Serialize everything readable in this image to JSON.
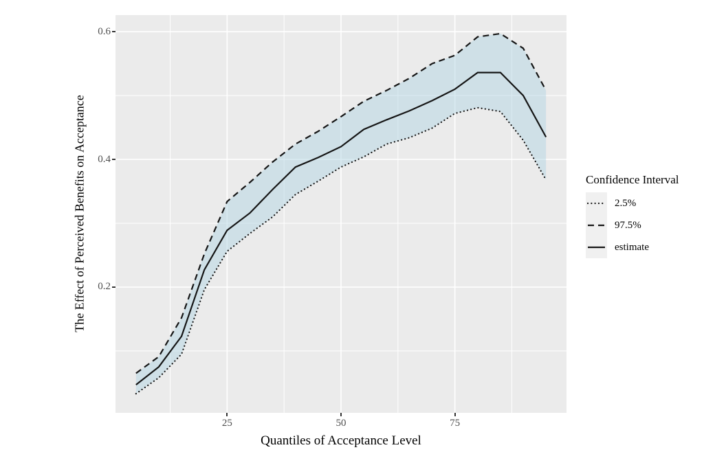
{
  "chart_data": {
    "type": "line",
    "title": "",
    "xlabel": "Quantiles of Acceptance Level",
    "ylabel": "The Effect of Perceived Benefits on Acceptance",
    "x": [
      5,
      10,
      15,
      20,
      25,
      30,
      35,
      40,
      45,
      50,
      55,
      60,
      65,
      70,
      75,
      80,
      85,
      90,
      95
    ],
    "series": [
      {
        "name": "2.5%",
        "style": "dotted",
        "values": [
          0.033,
          0.058,
          0.095,
          0.196,
          0.256,
          0.284,
          0.31,
          0.345,
          0.366,
          0.388,
          0.404,
          0.424,
          0.434,
          0.449,
          0.472,
          0.481,
          0.475,
          0.43,
          0.368
        ]
      },
      {
        "name": "97.5%",
        "style": "dashed",
        "values": [
          0.065,
          0.091,
          0.152,
          0.252,
          0.334,
          0.364,
          0.396,
          0.424,
          0.444,
          0.467,
          0.491,
          0.508,
          0.527,
          0.55,
          0.563,
          0.592,
          0.597,
          0.574,
          0.508
        ]
      },
      {
        "name": "estimate",
        "style": "solid",
        "values": [
          0.047,
          0.075,
          0.123,
          0.227,
          0.289,
          0.316,
          0.353,
          0.388,
          0.403,
          0.42,
          0.447,
          0.462,
          0.476,
          0.492,
          0.51,
          0.536,
          0.536,
          0.5,
          0.435
        ]
      }
    ],
    "band": {
      "lower": "2.5%",
      "upper": "97.5%"
    },
    "xlim": [
      0.5,
      99.5
    ],
    "ylim": [
      0.003,
      0.626
    ],
    "x_ticks": [
      {
        "v": 25,
        "label": "25"
      },
      {
        "v": 50,
        "label": "50"
      },
      {
        "v": 75,
        "label": "75"
      }
    ],
    "y_ticks": [
      {
        "v": 0.2,
        "label": "0.2"
      },
      {
        "v": 0.4,
        "label": "0.4"
      },
      {
        "v": 0.6,
        "label": "0.6"
      }
    ],
    "x_minor": [
      12.5,
      37.5,
      62.5,
      87.5
    ],
    "y_minor": [
      0.1,
      0.3,
      0.5
    ],
    "grid": "on",
    "legend": {
      "title": "Confidence Interval",
      "position": "right",
      "entries": [
        "2.5%",
        "97.5%",
        "estimate"
      ]
    }
  },
  "colors": {
    "panel_bg": "#ebebeb",
    "grid": "#ffffff",
    "band_fill": "rgba(179,213,228,0.5)",
    "line": "#151515",
    "tick_text": "#4d4d4d",
    "title_text": "#000000",
    "legend_key_bg": "#f0f0f0"
  }
}
